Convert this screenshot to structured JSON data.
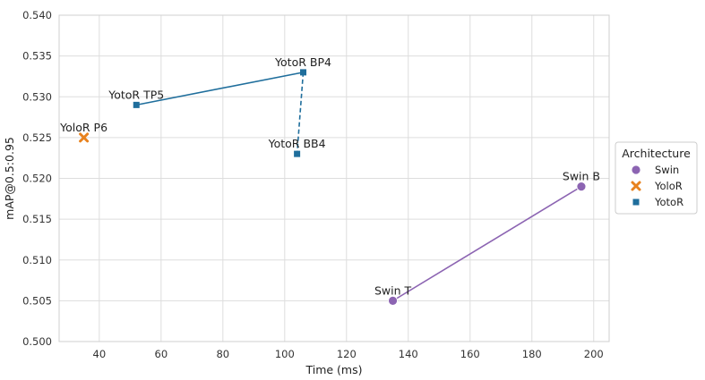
{
  "chart_data": {
    "type": "scatter",
    "xlabel": "Time (ms)",
    "ylabel": "mAP@0.5:0.95",
    "xlim": [
      27,
      205
    ],
    "ylim": [
      0.5,
      0.54
    ],
    "x_ticks": [
      "40",
      "60",
      "80",
      "100",
      "120",
      "140",
      "160",
      "180",
      "200"
    ],
    "y_ticks": [
      "0.500",
      "0.505",
      "0.510",
      "0.515",
      "0.520",
      "0.525",
      "0.530",
      "0.535",
      "0.540"
    ],
    "grid": true,
    "legend": {
      "title": "Architecture",
      "placement": "outside-right",
      "entries": [
        {
          "label": "Swin",
          "marker": "circle",
          "color": "#8c64b2"
        },
        {
          "label": "YoloR",
          "marker": "x",
          "color": "#e8821e"
        },
        {
          "label": "YotoR",
          "marker": "square",
          "color": "#1f6e9c"
        }
      ]
    },
    "points": [
      {
        "label": "YoloR P6",
        "series": "YoloR",
        "x": 35,
        "y": 0.525
      },
      {
        "label": "YotoR TP5",
        "series": "YotoR",
        "x": 52,
        "y": 0.529
      },
      {
        "label": "YotoR BP4",
        "series": "YotoR",
        "x": 106,
        "y": 0.533
      },
      {
        "label": "YotoR BB4",
        "series": "YotoR",
        "x": 104,
        "y": 0.523
      },
      {
        "label": "Swin T",
        "series": "Swin",
        "x": 135,
        "y": 0.505
      },
      {
        "label": "Swin B",
        "series": "Swin",
        "x": 196,
        "y": 0.519
      }
    ],
    "connections": [
      {
        "from": "YotoR TP5",
        "to": "YotoR BP4",
        "style": "solid",
        "color": "#1f6e9c"
      },
      {
        "from": "YotoR BP4",
        "to": "YotoR BB4",
        "style": "dashed",
        "color": "#1f6e9c"
      },
      {
        "from": "Swin T",
        "to": "Swin B",
        "style": "solid",
        "color": "#8c64b2"
      }
    ]
  }
}
